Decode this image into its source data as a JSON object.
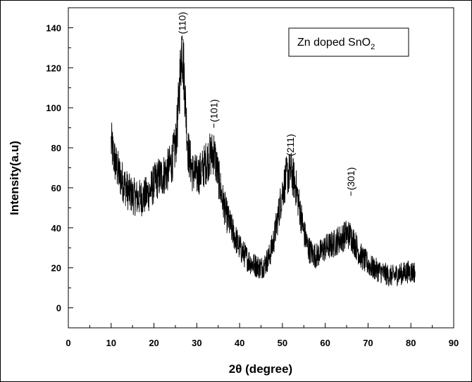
{
  "chart_data": {
    "type": "line",
    "xlabel": "2θ (degree)",
    "ylabel": "Intensity(a.u)",
    "xlim": [
      0,
      90
    ],
    "ylim": [
      -10,
      150
    ],
    "xticks": [
      0,
      10,
      20,
      30,
      40,
      50,
      60,
      70,
      80,
      90
    ],
    "yticks": [
      0,
      20,
      40,
      60,
      80,
      100,
      120,
      140
    ],
    "legend": {
      "text": "Zn doped SnO",
      "subscript": "2",
      "placement": "top-right"
    },
    "annotations": [
      {
        "label": "(110)",
        "x": 26.6,
        "y": 134
      },
      {
        "label": "(101)",
        "x": 34.0,
        "y": 90
      },
      {
        "label": "(211)",
        "x": 51.8,
        "y": 73
      },
      {
        "label": "(301)",
        "x": 66.0,
        "y": 56
      }
    ],
    "series": [
      {
        "x": [
          10,
          11,
          12,
          13,
          14,
          15,
          16,
          17,
          18,
          19,
          20,
          21,
          22,
          23,
          24,
          25,
          25.5,
          26,
          26.5,
          27,
          27.5,
          28,
          29,
          30,
          31,
          32,
          33,
          34,
          35,
          36,
          37,
          38,
          39,
          40,
          41,
          42,
          43,
          44,
          45,
          46,
          47,
          48,
          49,
          50,
          51,
          52,
          53,
          54,
          55,
          56,
          57,
          58,
          59,
          60,
          61,
          62,
          63,
          64,
          65,
          66,
          67,
          68,
          69,
          70,
          71,
          72,
          73,
          74,
          75,
          76,
          77,
          78,
          79,
          80,
          81
        ],
        "y": [
          82,
          72,
          66,
          62,
          58,
          56,
          55,
          55,
          56,
          58,
          62,
          65,
          66,
          68,
          72,
          80,
          92,
          112,
          132,
          118,
          96,
          78,
          68,
          66,
          68,
          72,
          76,
          78,
          66,
          54,
          46,
          40,
          35,
          30,
          27,
          24,
          22,
          21,
          20,
          22,
          26,
          34,
          46,
          58,
          66,
          68,
          62,
          50,
          38,
          30,
          27,
          26,
          28,
          30,
          31,
          32,
          34,
          35,
          37,
          36,
          32,
          27,
          24,
          22,
          20,
          19,
          18,
          17,
          16,
          16,
          17,
          17,
          18,
          18,
          18
        ]
      }
    ]
  }
}
